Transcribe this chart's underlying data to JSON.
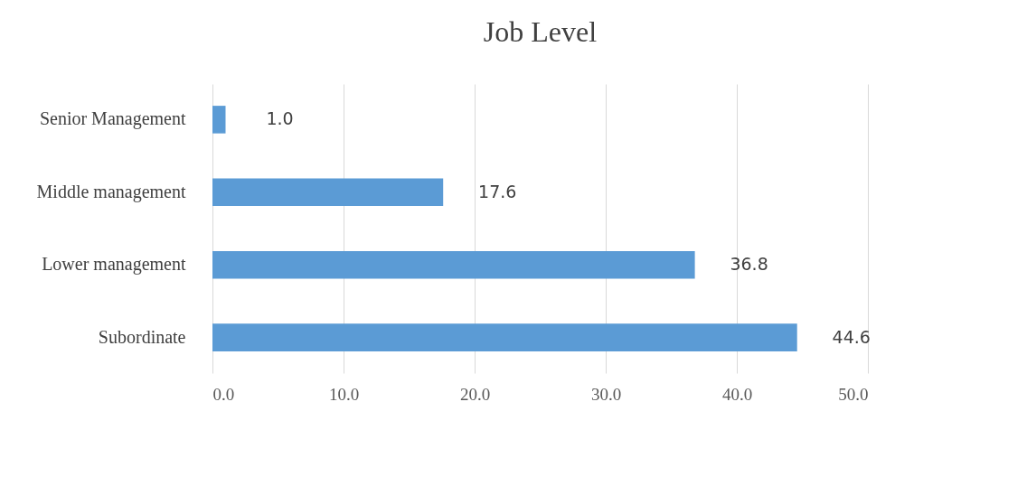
{
  "chart_data": {
    "type": "bar",
    "title": "Job Level",
    "orientation": "horizontal",
    "categories": [
      "Senior Management",
      "Middle management",
      "Lower  management",
      "Subordinate"
    ],
    "values": [
      1.0,
      17.6,
      36.8,
      44.6
    ],
    "value_labels": [
      "1.0",
      "17.6",
      "36.8",
      "44.6"
    ],
    "color": "#5b9bd5",
    "xlim": [
      0,
      50
    ],
    "xticks": [
      {
        "value": 0,
        "label": "0.0"
      },
      {
        "value": 10,
        "label": "10.0"
      },
      {
        "value": 20,
        "label": "20.0"
      },
      {
        "value": 30,
        "label": "30.0"
      },
      {
        "value": 40,
        "label": "40.0"
      },
      {
        "value": 50,
        "label": "50.0"
      }
    ],
    "grid": "x"
  }
}
